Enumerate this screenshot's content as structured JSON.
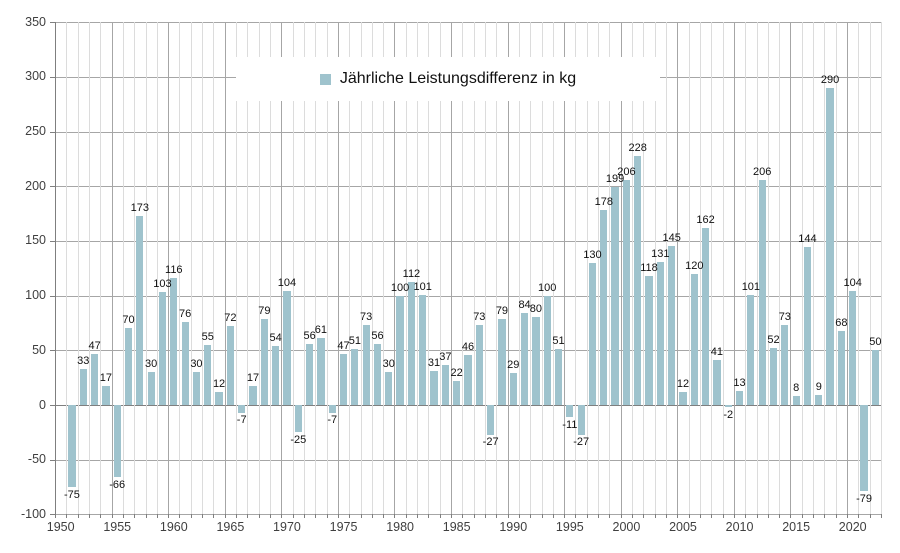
{
  "chart_data": {
    "type": "bar",
    "title": "",
    "legend": "Jährliche Leistungsdifferenz in kg",
    "series": [
      {
        "name": "Jährliche Leistungsdifferenz in kg",
        "years": [
          1951,
          1952,
          1953,
          1954,
          1955,
          1956,
          1957,
          1958,
          1959,
          1960,
          1961,
          1962,
          1963,
          1964,
          1965,
          1966,
          1967,
          1968,
          1969,
          1970,
          1971,
          1972,
          1973,
          1974,
          1975,
          1976,
          1977,
          1978,
          1979,
          1980,
          1981,
          1982,
          1983,
          1984,
          1985,
          1986,
          1987,
          1988,
          1989,
          1990,
          1991,
          1992,
          1993,
          1994,
          1995,
          1996,
          1997,
          1998,
          1999,
          2000,
          2001,
          2002,
          2003,
          2004,
          2005,
          2006,
          2007,
          2008,
          2009,
          2010,
          2011,
          2012,
          2013,
          2014,
          2015,
          2016,
          2017,
          2018,
          2019,
          2020,
          2021,
          2022
        ],
        "values": [
          -75,
          33,
          47,
          17,
          -66,
          70,
          173,
          30,
          103,
          116,
          76,
          30,
          55,
          12,
          72,
          -7,
          17,
          79,
          54,
          104,
          -25,
          56,
          61,
          -7,
          47,
          51,
          73,
          56,
          30,
          100,
          112,
          101,
          31,
          37,
          22,
          46,
          73,
          -27,
          79,
          29,
          84,
          80,
          100,
          51,
          -11,
          -27,
          130,
          178,
          199,
          206,
          228,
          118,
          131,
          145,
          12,
          120,
          162,
          41,
          -2,
          13,
          101,
          206,
          52,
          73,
          8,
          144,
          9,
          290,
          68,
          104,
          -79,
          50
        ]
      }
    ],
    "ylabel": "",
    "xlabel": "",
    "ylim": [
      -100,
      350
    ],
    "ytick_step": 50,
    "yticks": [
      350,
      300,
      250,
      200,
      150,
      100,
      50,
      0,
      -50,
      -100
    ],
    "axis_year_range": [
      1950,
      2022
    ],
    "xticks": [
      1950,
      1955,
      1960,
      1965,
      1970,
      1975,
      1980,
      1985,
      1990,
      1995,
      2000,
      2005,
      2010,
      2015,
      2020
    ],
    "grid": "on",
    "legend_position": "top-center-inset",
    "data_labels": "on",
    "colors": {
      "bar": "#9FC3CD",
      "grid_minor": "#DCDCDC",
      "grid_major": "#A6A6A6",
      "axis_line": "#7F7F7F",
      "bar_label": "#111111",
      "tick_label": "#3F3F3F",
      "background": "#FFFFFF"
    }
  }
}
